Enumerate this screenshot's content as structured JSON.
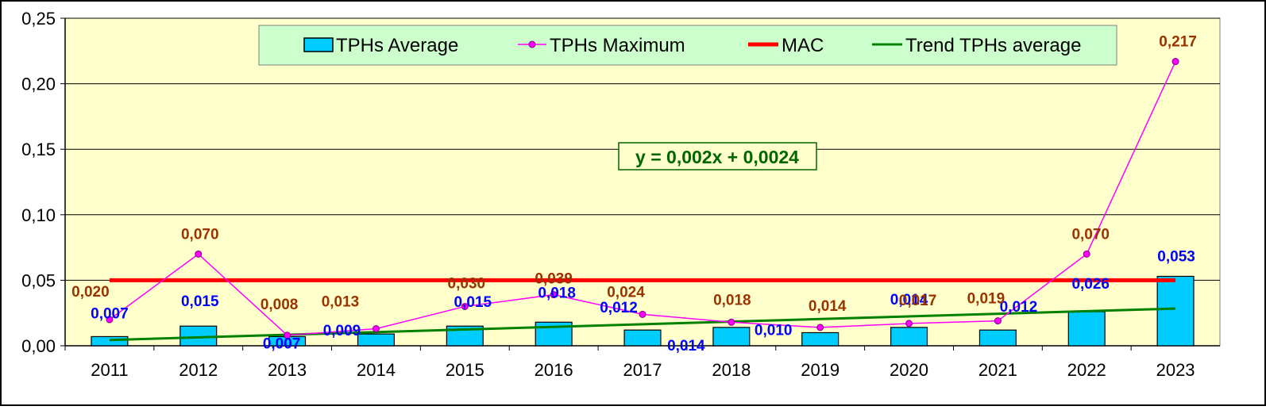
{
  "chart_data": {
    "type": "bar",
    "categories": [
      "2011",
      "2012",
      "2013",
      "2014",
      "2015",
      "2016",
      "2017",
      "2018",
      "2019",
      "2020",
      "2021",
      "2022",
      "2023"
    ],
    "ylim": [
      0,
      0.25
    ],
    "yticks": [
      "0,00",
      "0,05",
      "0,10",
      "0,15",
      "0,20",
      "0,25"
    ],
    "grid": true,
    "legend_position": "top",
    "series": [
      {
        "name": "TPHs Average",
        "type": "bar",
        "values": [
          0.007,
          0.015,
          0.007,
          0.009,
          0.015,
          0.018,
          0.012,
          0.014,
          0.01,
          0.014,
          0.012,
          0.026,
          0.053
        ],
        "labels": [
          "0,007",
          "0,015",
          "0,007",
          "0,009",
          "0,015",
          "0,018",
          "0,012",
          "0,014",
          "0,010",
          "0,014",
          "0,012",
          "0,026",
          "0,053"
        ],
        "color": "#00ccff"
      },
      {
        "name": "TPHs Maximum",
        "type": "line",
        "values": [
          0.02,
          0.07,
          0.008,
          0.013,
          0.03,
          0.039,
          0.024,
          0.018,
          0.014,
          0.017,
          0.019,
          0.07,
          0.217
        ],
        "labels": [
          "0,020",
          "0,070",
          "0,008",
          "0,013",
          "0,030",
          "0,039",
          "0,024",
          "0,018",
          "0,014",
          "0,017",
          "0,019",
          "0,070",
          "0,217"
        ],
        "color": "#ff00ff"
      },
      {
        "name": "MAC",
        "type": "line",
        "value": 0.05,
        "color": "#ff0000"
      },
      {
        "name": "Trend TPHs average",
        "type": "line",
        "values": [
          0.0044,
          0.0064,
          0.0084,
          0.0104,
          0.0124,
          0.0144,
          0.0164,
          0.0184,
          0.0204,
          0.0224,
          0.0244,
          0.0264,
          0.0284
        ],
        "color": "#008000"
      }
    ],
    "annotations": [
      {
        "text": "y = 0,002x + 0,0024",
        "color": "#006600"
      }
    ]
  },
  "colors": {
    "plot_background": "#ffffcc",
    "legend_background": "#ccffcc",
    "gridline": "#000000",
    "avg_label": "#0000ff",
    "max_label": "#993300"
  }
}
